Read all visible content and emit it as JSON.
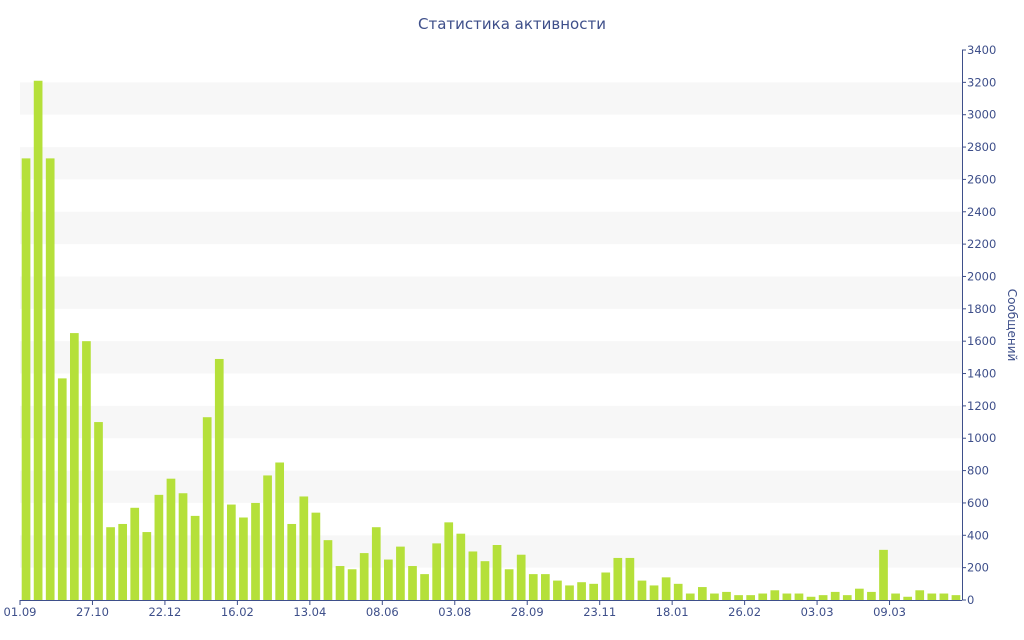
{
  "chart_data": {
    "type": "bar",
    "title": "Статистика активности",
    "ylabel": "Сообщений",
    "xlabel": "",
    "ylim": [
      0,
      3400
    ],
    "y_ticks": [
      0,
      200,
      400,
      600,
      800,
      1000,
      1200,
      1400,
      1600,
      1800,
      2000,
      2200,
      2400,
      2600,
      2800,
      3000,
      3200,
      3400
    ],
    "x_tick_labels": [
      {
        "index": 0,
        "label": "01.09"
      },
      {
        "index": 6,
        "label": "27.10"
      },
      {
        "index": 12,
        "label": "22.12"
      },
      {
        "index": 18,
        "label": "16.02"
      },
      {
        "index": 24,
        "label": "13.04"
      },
      {
        "index": 30,
        "label": "08.06"
      },
      {
        "index": 36,
        "label": "03.08"
      },
      {
        "index": 42,
        "label": "28.09"
      },
      {
        "index": 48,
        "label": "23.11"
      },
      {
        "index": 54,
        "label": "18.01"
      },
      {
        "index": 60,
        "label": "26.02"
      },
      {
        "index": 66,
        "label": "03.03"
      },
      {
        "index": 72,
        "label": "09.03"
      }
    ],
    "values": [
      2730,
      3210,
      2730,
      1370,
      1650,
      1600,
      1100,
      450,
      470,
      570,
      420,
      650,
      750,
      660,
      520,
      1130,
      1490,
      590,
      510,
      600,
      770,
      850,
      470,
      640,
      540,
      370,
      210,
      190,
      290,
      450,
      250,
      330,
      210,
      160,
      350,
      480,
      410,
      300,
      240,
      340,
      190,
      280,
      160,
      160,
      120,
      90,
      110,
      100,
      170,
      260,
      260,
      120,
      90,
      140,
      100,
      40,
      80,
      40,
      50,
      30,
      30,
      40,
      60,
      40,
      40,
      20,
      30,
      50,
      30,
      70,
      50,
      310,
      40,
      20,
      60,
      40,
      40,
      30
    ],
    "bar_color": "#b5e03a",
    "band_color": "#f7f7f7",
    "axis_color": "#3e4f8a",
    "grid": "alternating horizontal bands",
    "y_axis_position": "right"
  }
}
